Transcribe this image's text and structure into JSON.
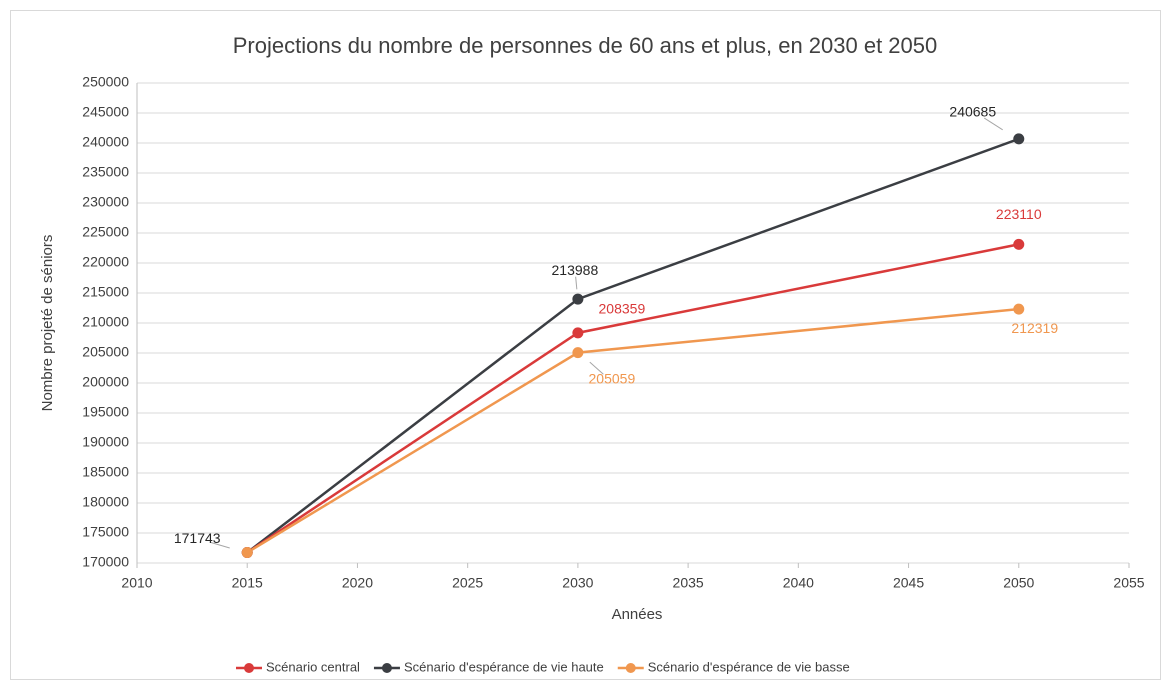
{
  "chart_data": {
    "type": "line",
    "title": "Projections du nombre de personnes de 60 ans et plus, en 2030 et 2050",
    "xlabel": "Années",
    "ylabel": "Nombre projeté de séniors",
    "x": [
      2015,
      2030,
      2050
    ],
    "series": [
      {
        "name": "Scénario central",
        "color": "#d93a3a",
        "values": [
          171743,
          208359,
          223110
        ],
        "data_labels": [
          false,
          true,
          true
        ]
      },
      {
        "name": "Scénario d'espérance de vie haute",
        "color": "#3b3e43",
        "values": [
          171743,
          213988,
          240685
        ],
        "data_labels": [
          true,
          true,
          true
        ]
      },
      {
        "name": "Scénario d'espérance de vie basse",
        "color": "#f0974f",
        "values": [
          171743,
          205059,
          212319
        ],
        "data_labels": [
          false,
          true,
          true
        ]
      }
    ],
    "xlim": [
      2010,
      2055
    ],
    "xticks": [
      2010,
      2015,
      2020,
      2025,
      2030,
      2035,
      2040,
      2045,
      2050,
      2055
    ],
    "ylim": [
      170000,
      250000
    ],
    "yticks": [
      170000,
      175000,
      180000,
      185000,
      190000,
      195000,
      200000,
      205000,
      210000,
      215000,
      220000,
      225000,
      230000,
      235000,
      240000,
      245000,
      250000
    ],
    "grid": true,
    "legend": "bottom"
  }
}
